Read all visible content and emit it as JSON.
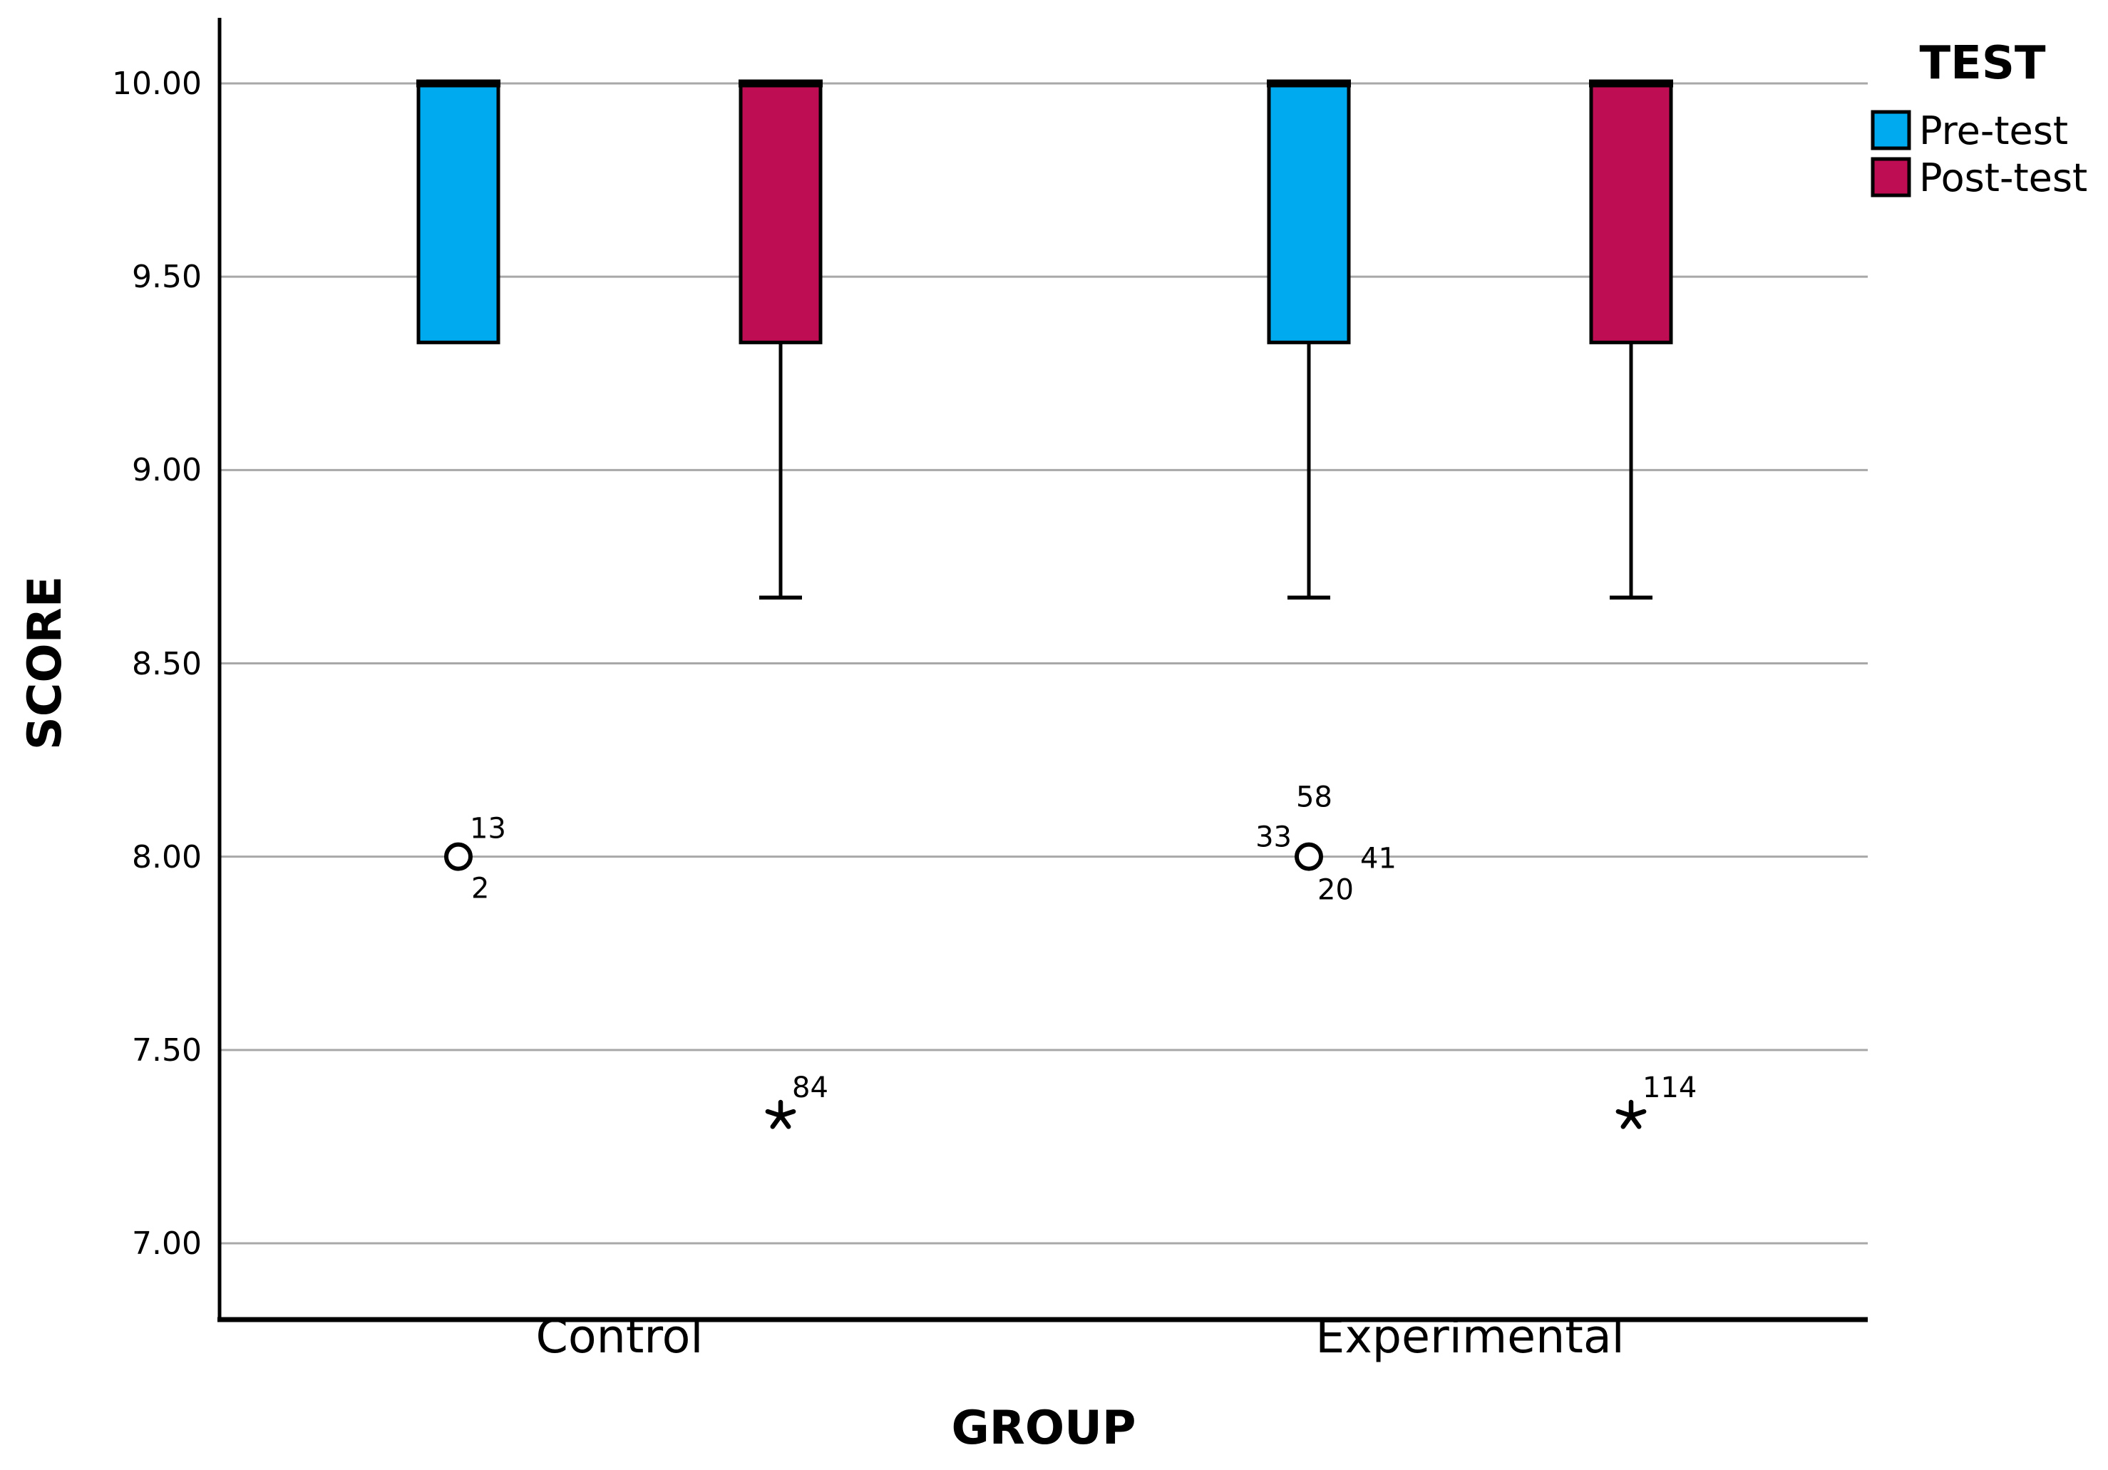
{
  "chart_data": {
    "type": "boxplot",
    "xlabel": "GROUP",
    "ylabel": "SCORE",
    "categories": [
      "Control",
      "Experimental"
    ],
    "y_axis": {
      "ticks": [
        {
          "label": "10.00",
          "value": 10.0
        },
        {
          "label": "9.50",
          "value": 9.5
        },
        {
          "label": "9.00",
          "value": 9.0
        },
        {
          "label": "8.50",
          "value": 8.5
        },
        {
          "label": "8.00",
          "value": 8.0
        },
        {
          "label": "7.50",
          "value": 7.5
        },
        {
          "label": "7.00",
          "value": 7.0
        }
      ],
      "range_shown": [
        6.8,
        10.17
      ],
      "gridlines": true
    },
    "legend": {
      "title": "TEST",
      "position": "top-right",
      "entries": [
        {
          "label": "Pre-test",
          "color": "#00AAEE"
        },
        {
          "label": "Post-test",
          "color": "#BF0D53"
        }
      ]
    },
    "colors": {
      "gridline": "#A8A8A8",
      "axis": "#000000",
      "box_border": "#000000",
      "outlier_marker": "#000000"
    },
    "series": [
      {
        "name": "Pre-test",
        "color": "#00AAEE",
        "boxes": [
          {
            "category": "Control",
            "q1": 9.33,
            "median": 10.0,
            "q3": 10.0,
            "whisker_low": null,
            "whisker_high": null,
            "outliers": [
              {
                "marker": "circle",
                "value": 8.0,
                "case_labels": [
                  {
                    "text": "13",
                    "pos": "above-right"
                  },
                  {
                    "text": "2",
                    "pos": "below-right"
                  }
                ]
              }
            ]
          },
          {
            "category": "Experimental",
            "q1": 9.33,
            "median": 10.0,
            "q3": 10.0,
            "whisker_low": 8.67,
            "whisker_high": null,
            "outliers": [
              {
                "marker": "circle",
                "value": 8.0,
                "case_labels": [
                  {
                    "text": "58",
                    "pos": "above"
                  },
                  {
                    "text": "33",
                    "pos": "left"
                  },
                  {
                    "text": "41",
                    "pos": "right"
                  },
                  {
                    "text": "20",
                    "pos": "below"
                  }
                ]
              }
            ]
          }
        ]
      },
      {
        "name": "Post-test",
        "color": "#BF0D53",
        "boxes": [
          {
            "category": "Control",
            "q1": 9.33,
            "median": 10.0,
            "q3": 10.0,
            "whisker_low": 8.67,
            "whisker_high": null,
            "outliers": [
              {
                "marker": "asterisk",
                "value": 7.33,
                "case_labels": [
                  {
                    "text": "84",
                    "pos": "above-right"
                  }
                ]
              }
            ]
          },
          {
            "category": "Experimental",
            "q1": 9.33,
            "median": 10.0,
            "q3": 10.0,
            "whisker_low": 8.67,
            "whisker_high": null,
            "outliers": [
              {
                "marker": "asterisk",
                "value": 7.33,
                "case_labels": [
                  {
                    "text": "114",
                    "pos": "above-right"
                  }
                ]
              }
            ]
          }
        ]
      }
    ]
  }
}
